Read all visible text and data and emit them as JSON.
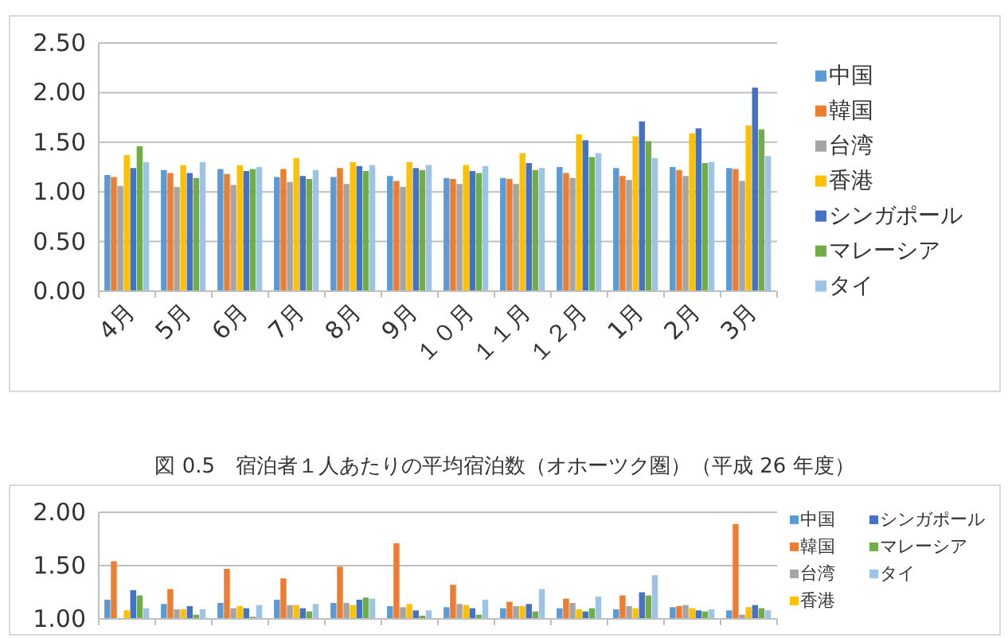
{
  "chart_data": [
    {
      "type": "bar",
      "categories": [
        "4月",
        "5月",
        "6月",
        "7月",
        "8月",
        "9月",
        "１０月",
        "１１月",
        "１２月",
        "1月",
        "2月",
        "3月"
      ],
      "series": [
        {
          "name": "中国",
          "color": "#5b9bd5",
          "values": [
            1.17,
            1.22,
            1.23,
            1.15,
            1.15,
            1.16,
            1.14,
            1.14,
            1.25,
            1.24,
            1.25,
            1.24
          ]
        },
        {
          "name": "韓国",
          "color": "#ed7d31",
          "values": [
            1.15,
            1.19,
            1.18,
            1.23,
            1.24,
            1.11,
            1.13,
            1.13,
            1.19,
            1.16,
            1.22,
            1.23
          ]
        },
        {
          "name": "台湾",
          "color": "#a5a5a5",
          "values": [
            1.06,
            1.05,
            1.07,
            1.1,
            1.08,
            1.05,
            1.08,
            1.08,
            1.14,
            1.12,
            1.16,
            1.11
          ]
        },
        {
          "name": "香港",
          "color": "#ffc000",
          "values": [
            1.37,
            1.27,
            1.27,
            1.34,
            1.3,
            1.3,
            1.27,
            1.39,
            1.58,
            1.56,
            1.59,
            1.67
          ]
        },
        {
          "name": "シンガポール",
          "color": "#4472c4",
          "values": [
            1.24,
            1.19,
            1.21,
            1.16,
            1.26,
            1.24,
            1.21,
            1.29,
            1.52,
            1.71,
            1.64,
            2.05
          ]
        },
        {
          "name": "マレーシア",
          "color": "#70ad47",
          "values": [
            1.46,
            1.14,
            1.23,
            1.13,
            1.21,
            1.22,
            1.19,
            1.22,
            1.35,
            1.51,
            1.29,
            1.63
          ]
        },
        {
          "name": "タイ",
          "color": "#9dc3e6",
          "values": [
            1.3,
            1.3,
            1.25,
            1.22,
            1.27,
            1.27,
            1.26,
            1.24,
            1.39,
            1.34,
            1.3,
            1.36
          ]
        }
      ],
      "ylim": [
        0,
        2.5
      ],
      "yticks": [
        {
          "value": 0,
          "label": "0.00"
        },
        {
          "value": 0.5,
          "label": "0.50"
        },
        {
          "value": 1,
          "label": "1.00"
        },
        {
          "value": 1.5,
          "label": "1.50"
        },
        {
          "value": 2,
          "label": "2.00"
        },
        {
          "value": 2.5,
          "label": "2.50"
        }
      ],
      "grid": "y",
      "legend": "right"
    },
    {
      "type": "bar",
      "title": "図 0.5　宿泊者１人あたりの平均宿泊数（オホーツク圏）（平成 26 年度）",
      "categories": [
        null,
        null,
        null,
        null,
        null,
        null,
        null,
        null,
        null,
        null,
        null,
        null
      ],
      "series": [
        {
          "name": "中国",
          "color": "#5b9bd5",
          "values": [
            1.18,
            1.14,
            1.15,
            1.18,
            1.15,
            1.12,
            1.11,
            1.1,
            1.1,
            1.09,
            1.11,
            1.08
          ]
        },
        {
          "name": "韓国",
          "color": "#ed7d31",
          "values": [
            1.54,
            1.28,
            1.47,
            1.38,
            1.49,
            1.71,
            1.32,
            1.16,
            1.19,
            1.22,
            1.12,
            1.89
          ]
        },
        {
          "name": "台湾",
          "color": "#a5a5a5",
          "values": [
            null,
            1.09,
            1.1,
            1.13,
            1.15,
            1.11,
            1.14,
            1.12,
            1.15,
            1.12,
            1.13,
            1.04
          ]
        },
        {
          "name": "香港",
          "color": "#ffc000",
          "values": [
            1.08,
            1.09,
            1.12,
            1.13,
            1.13,
            1.14,
            1.13,
            1.12,
            1.09,
            1.1,
            1.1,
            1.11
          ]
        },
        {
          "name": "シンガポール",
          "color": "#4472c4",
          "values": [
            1.27,
            1.12,
            1.1,
            1.1,
            1.18,
            1.08,
            1.1,
            1.14,
            1.07,
            1.25,
            1.08,
            1.13
          ]
        },
        {
          "name": "マレーシア",
          "color": "#70ad47",
          "values": [
            1.22,
            1.04,
            1.02,
            1.07,
            1.2,
            1.03,
            1.04,
            1.07,
            1.1,
            1.22,
            1.07,
            1.1
          ]
        },
        {
          "name": "タイ",
          "color": "#9dc3e6",
          "values": [
            1.1,
            1.09,
            1.13,
            1.14,
            1.19,
            1.08,
            1.18,
            1.28,
            1.21,
            1.41,
            1.09,
            1.08
          ]
        }
      ],
      "ylim": [
        1,
        2
      ],
      "yticks": [
        {
          "value": 1,
          "label": "1.00"
        },
        {
          "value": 1.5,
          "label": "1.50"
        },
        {
          "value": 2,
          "label": "2.00"
        }
      ],
      "grid": "y",
      "legend": "right"
    }
  ]
}
